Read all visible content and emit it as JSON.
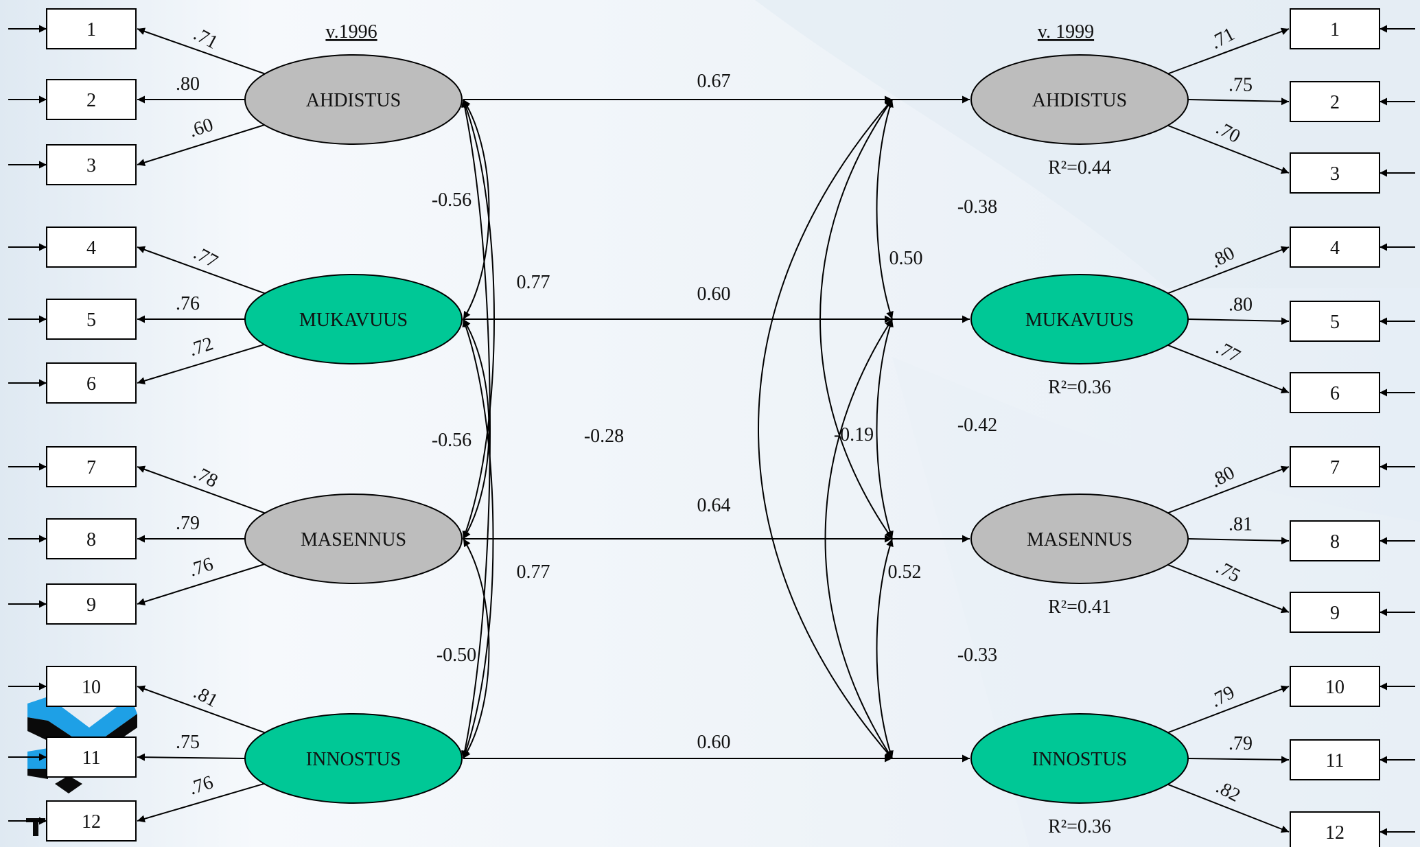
{
  "years": {
    "left": "v.1996",
    "right": "v. 1999"
  },
  "colors": {
    "grey_factor": "#bdbdbd",
    "green_factor": "#00c896",
    "line": "#000000",
    "logo_blue": "#1ea0e6"
  },
  "left_factors": [
    {
      "name": "AHDISTUS",
      "color": "grey",
      "loadings": [
        ".71",
        ".80",
        ".60"
      ],
      "indicators": [
        "1",
        "2",
        "3"
      ]
    },
    {
      "name": "MUKAVUUS",
      "color": "green",
      "loadings": [
        ".77",
        ".76",
        ".72"
      ],
      "indicators": [
        "4",
        "5",
        "6"
      ]
    },
    {
      "name": "MASENNUS",
      "color": "grey",
      "loadings": [
        ".78",
        ".79",
        ".76"
      ],
      "indicators": [
        "7",
        "8",
        "9"
      ]
    },
    {
      "name": "INNOSTUS",
      "color": "green",
      "loadings": [
        ".81",
        ".75",
        ".76"
      ],
      "indicators": [
        "10",
        "11",
        "12"
      ]
    }
  ],
  "right_factors": [
    {
      "name": "AHDISTUS",
      "color": "grey",
      "loadings": [
        ".71",
        ".75",
        ".70"
      ],
      "indicators": [
        "1",
        "2",
        "3"
      ],
      "r2": "R²=0.44"
    },
    {
      "name": "MUKAVUUS",
      "color": "green",
      "loadings": [
        ".80",
        ".80",
        ".77"
      ],
      "indicators": [
        "4",
        "5",
        "6"
      ],
      "r2": "R²=0.36"
    },
    {
      "name": "MASENNUS",
      "color": "grey",
      "loadings": [
        ".80",
        ".81",
        ".75"
      ],
      "indicators": [
        "7",
        "8",
        "9"
      ],
      "r2": "R²=0.41"
    },
    {
      "name": "INNOSTUS",
      "color": "green",
      "loadings": [
        ".79",
        ".79",
        ".82"
      ],
      "indicators": [
        "10",
        "11",
        "12"
      ],
      "r2": "R²=0.36"
    }
  ],
  "paths": [
    "0.67",
    "0.60",
    "0.64",
    "0.60"
  ],
  "left_correlations": [
    "-0.56",
    "0.77",
    "-0.56",
    "-0.28",
    "0.77",
    "-0.50"
  ],
  "right_correlations": [
    "-0.38",
    "0.50",
    "-0.42",
    "-0.19",
    "0.52",
    "-0.33"
  ]
}
